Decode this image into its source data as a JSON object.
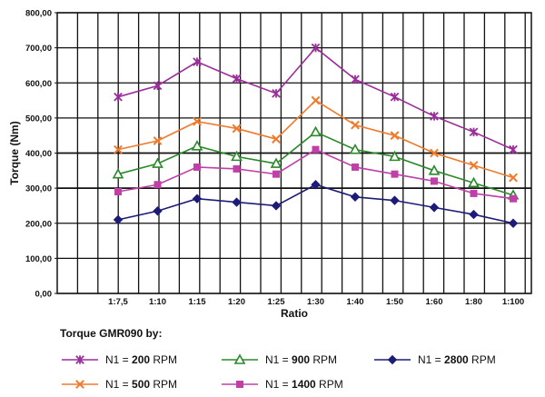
{
  "chart_data": {
    "type": "line",
    "xlabel": "Ratio",
    "ylabel": "Torque (Nm)",
    "ylim": [
      0,
      800
    ],
    "yticks": [
      "0,00",
      "100,00",
      "200,00",
      "300,00",
      "400,00",
      "500,00",
      "600,00",
      "700,00",
      "800,00"
    ],
    "categories": [
      "1:7,5",
      "1:10",
      "1:15",
      "1:20",
      "1:25",
      "1:30",
      "1:40",
      "1:50",
      "1:60",
      "1:80",
      "1:100"
    ],
    "grid": true,
    "legend_title": "Torque GMR090 by:",
    "legend_position": "bottom",
    "series": [
      {
        "name": "N1 = 200 RPM",
        "label_prefix": "N1 = ",
        "label_bold": "200",
        "label_suffix": " RPM",
        "color": "#9b2d9b",
        "marker": "star",
        "values": [
          560,
          592,
          660,
          612,
          570,
          700,
          610,
          560,
          505,
          460,
          410
        ]
      },
      {
        "name": "N1 = 500 RPM",
        "label_prefix": "N1 = ",
        "label_bold": "500",
        "label_suffix": " RPM",
        "color": "#f07a2a",
        "marker": "x",
        "values": [
          410,
          435,
          490,
          470,
          440,
          550,
          480,
          450,
          400,
          365,
          330
        ]
      },
      {
        "name": "N1 = 900 RPM",
        "label_prefix": "N1 = ",
        "label_bold": "900",
        "label_suffix": " RPM",
        "color": "#2a8a2a",
        "marker": "triangle",
        "values": [
          340,
          370,
          420,
          390,
          370,
          460,
          410,
          390,
          350,
          315,
          280
        ]
      },
      {
        "name": "N1 = 1400 RPM",
        "label_prefix": "N1 = ",
        "label_bold": "1400",
        "label_suffix": " RPM",
        "color": "#c040a8",
        "marker": "square",
        "values": [
          290,
          310,
          360,
          355,
          340,
          410,
          360,
          340,
          320,
          285,
          270
        ]
      },
      {
        "name": "N1 = 2800 RPM",
        "label_prefix": "N1 = ",
        "label_bold": "2800",
        "label_suffix": " RPM",
        "color": "#1c1c78",
        "marker": "diamond",
        "values": [
          210,
          235,
          270,
          260,
          250,
          310,
          275,
          265,
          245,
          225,
          200
        ]
      }
    ],
    "legend_layout": [
      [
        0,
        2,
        4
      ],
      [
        1,
        3
      ]
    ]
  }
}
